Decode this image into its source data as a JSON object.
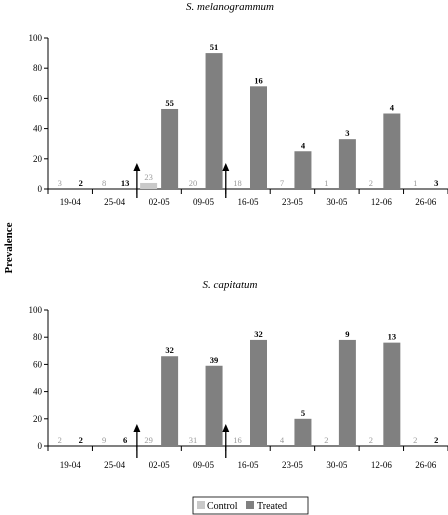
{
  "colors": {
    "control": "#c9c9c9",
    "treated": "#808080",
    "control_label_text": "#9a9a9a",
    "treated_label_text": "#000000",
    "axis": "#000000",
    "arrow": "#000000"
  },
  "ylabel": "Prevalence",
  "legend": {
    "control": "Control",
    "treated": "Treated"
  },
  "chart_data": [
    {
      "type": "bar",
      "title": "S. melanogrammum",
      "ylabel": "Prevalence",
      "ylim": [
        0,
        100
      ],
      "yticks": [
        0,
        20,
        40,
        60,
        80,
        100
      ],
      "categories": [
        "19-04",
        "25-04",
        "02-05",
        "09-05",
        "16-05",
        "23-05",
        "30-05",
        "12-06",
        "26-06"
      ],
      "series": [
        {
          "name": "Control",
          "values": [
            0,
            0,
            4,
            0,
            0,
            0,
            0,
            0,
            0
          ],
          "n": [
            "3",
            "8",
            "23",
            "20",
            "18",
            "7",
            "1",
            "2",
            "1"
          ]
        },
        {
          "name": "Treated",
          "values": [
            0,
            0,
            53,
            90,
            68,
            25,
            33,
            50,
            0
          ],
          "n": [
            "2",
            "13",
            "55",
            "51",
            "16",
            "4",
            "3",
            "4",
            "3"
          ]
        }
      ],
      "treatment_arrows_between": [
        [
          "25-04",
          "02-05"
        ],
        [
          "09-05",
          "16-05"
        ]
      ],
      "legend": "none"
    },
    {
      "type": "bar",
      "title": "S. capitatum",
      "ylabel": "Prevalence",
      "ylim": [
        0,
        100
      ],
      "yticks": [
        0,
        20,
        40,
        60,
        80,
        100
      ],
      "categories": [
        "19-04",
        "25-04",
        "02-05",
        "09-05",
        "16-05",
        "23-05",
        "30-05",
        "12-06",
        "26-06"
      ],
      "series": [
        {
          "name": "Control",
          "values": [
            0,
            0,
            0,
            0,
            0,
            0,
            0,
            0,
            0
          ],
          "n": [
            "2",
            "9",
            "29",
            "31",
            "16",
            "4",
            "2",
            "2",
            "2"
          ]
        },
        {
          "name": "Treated",
          "values": [
            0,
            0,
            66,
            59,
            78,
            20,
            78,
            76,
            0
          ],
          "n": [
            "2",
            "6",
            "32",
            "39",
            "32",
            "5",
            "9",
            "13",
            "2"
          ]
        }
      ],
      "treatment_arrows_between": [
        [
          "25-04",
          "02-05"
        ],
        [
          "09-05",
          "16-05"
        ]
      ],
      "legend": "bottom-center"
    }
  ]
}
